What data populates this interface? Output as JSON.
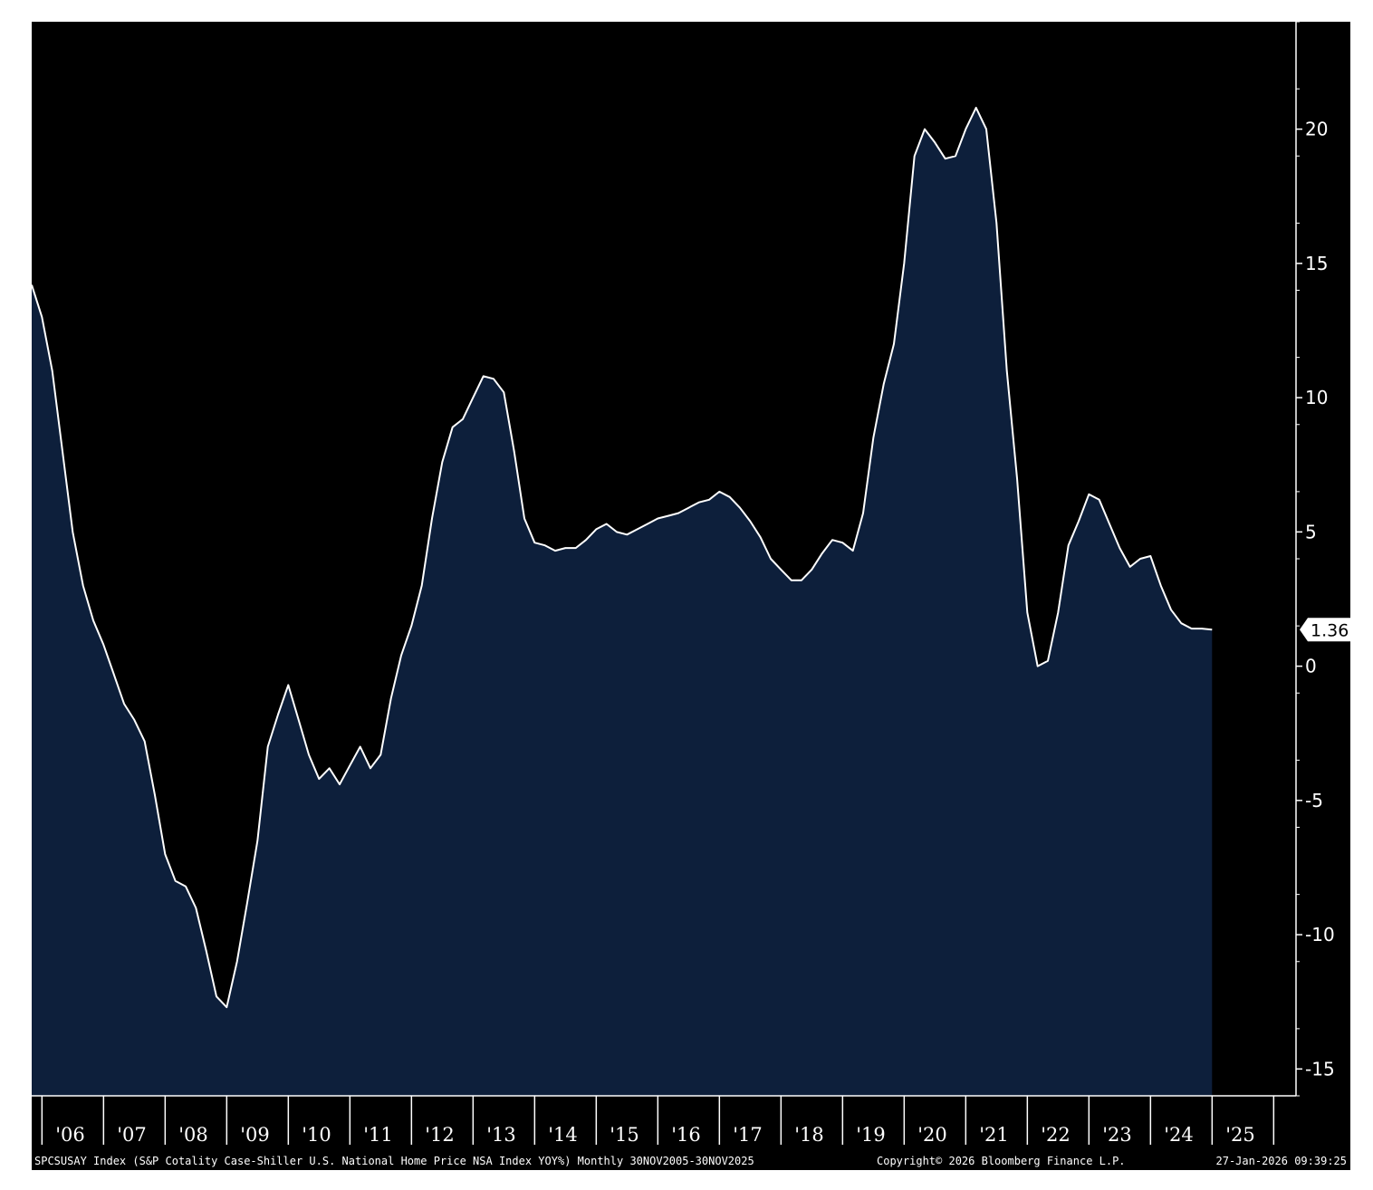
{
  "colors": {
    "background": "#000000",
    "area_fill": "#0d1f3b",
    "line": "#ffffff",
    "frame": "#ffffff",
    "page": "#ffffff"
  },
  "footer": {
    "description": "SPCSUSAY Index (S&P Cotality Case-Shiller U.S. National Home Price NSA Index YOY%) Monthly 30NOV2005-30NOV2025",
    "copyright": "Copyright© 2026 Bloomberg Finance L.P.",
    "timestamp": "27-Jan-2026 09:39:25"
  },
  "chart_data": {
    "type": "area",
    "title": "",
    "xlabel": "",
    "ylabel": "",
    "x_range": [
      "2005-11",
      "2025-11"
    ],
    "ylim": [
      -16,
      24
    ],
    "y_axis_side": "right",
    "y_ticks": [
      -15,
      -10,
      -5,
      0,
      5,
      10,
      15,
      20
    ],
    "y_tick_labels": [
      "-15",
      "-10",
      "-5",
      "0",
      "5",
      "10",
      "15",
      "20"
    ],
    "x_tick_labels": [
      "'06",
      "'07",
      "'08",
      "'09",
      "'10",
      "'11",
      "'12",
      "'13",
      "'14",
      "'15",
      "'16",
      "'17",
      "'18",
      "'19",
      "'20",
      "'21",
      "'22",
      "'23",
      "'24",
      "'25"
    ],
    "grid": false,
    "legend": "none",
    "last_value_label": "1.36",
    "series": [
      {
        "name": "SPCSUSAY Index",
        "points": [
          [
            "2005-11",
            14.2
          ],
          [
            "2006-01",
            13.0
          ],
          [
            "2006-03",
            11.0
          ],
          [
            "2006-05",
            8.0
          ],
          [
            "2006-07",
            5.0
          ],
          [
            "2006-09",
            3.0
          ],
          [
            "2006-11",
            1.7
          ],
          [
            "2007-01",
            0.8
          ],
          [
            "2007-03",
            -0.3
          ],
          [
            "2007-05",
            -1.4
          ],
          [
            "2007-07",
            -2.0
          ],
          [
            "2007-09",
            -2.8
          ],
          [
            "2007-11",
            -4.8
          ],
          [
            "2008-01",
            -7.0
          ],
          [
            "2008-03",
            -8.0
          ],
          [
            "2008-05",
            -8.2
          ],
          [
            "2008-07",
            -9.0
          ],
          [
            "2008-09",
            -10.6
          ],
          [
            "2008-11",
            -12.3
          ],
          [
            "2009-01",
            -12.7
          ],
          [
            "2009-03",
            -11.0
          ],
          [
            "2009-05",
            -8.8
          ],
          [
            "2009-07",
            -6.5
          ],
          [
            "2009-09",
            -3.0
          ],
          [
            "2009-11",
            -1.8
          ],
          [
            "2010-01",
            -0.7
          ],
          [
            "2010-03",
            -2.0
          ],
          [
            "2010-05",
            -3.3
          ],
          [
            "2010-07",
            -4.2
          ],
          [
            "2010-09",
            -3.8
          ],
          [
            "2010-11",
            -4.4
          ],
          [
            "2011-01",
            -3.7
          ],
          [
            "2011-03",
            -3.0
          ],
          [
            "2011-05",
            -3.8
          ],
          [
            "2011-07",
            -3.3
          ],
          [
            "2011-09",
            -1.2
          ],
          [
            "2011-11",
            0.4
          ],
          [
            "2012-01",
            1.5
          ],
          [
            "2012-03",
            3.0
          ],
          [
            "2012-05",
            5.5
          ],
          [
            "2012-07",
            7.6
          ],
          [
            "2012-09",
            8.9
          ],
          [
            "2012-11",
            9.2
          ],
          [
            "2013-01",
            10.0
          ],
          [
            "2013-03",
            10.8
          ],
          [
            "2013-05",
            10.7
          ],
          [
            "2013-07",
            10.2
          ],
          [
            "2013-09",
            8.0
          ],
          [
            "2013-11",
            5.5
          ],
          [
            "2014-01",
            4.6
          ],
          [
            "2014-03",
            4.5
          ],
          [
            "2014-05",
            4.3
          ],
          [
            "2014-07",
            4.4
          ],
          [
            "2014-09",
            4.4
          ],
          [
            "2014-11",
            4.7
          ],
          [
            "2015-01",
            5.1
          ],
          [
            "2015-03",
            5.3
          ],
          [
            "2015-05",
            5.0
          ],
          [
            "2015-07",
            4.9
          ],
          [
            "2015-09",
            5.1
          ],
          [
            "2015-11",
            5.3
          ],
          [
            "2016-01",
            5.5
          ],
          [
            "2016-03",
            5.6
          ],
          [
            "2016-05",
            5.7
          ],
          [
            "2016-07",
            5.9
          ],
          [
            "2016-09",
            6.1
          ],
          [
            "2016-11",
            6.2
          ],
          [
            "2017-01",
            6.5
          ],
          [
            "2017-03",
            6.3
          ],
          [
            "2017-05",
            5.9
          ],
          [
            "2017-07",
            5.4
          ],
          [
            "2017-09",
            4.8
          ],
          [
            "2017-11",
            4.0
          ],
          [
            "2018-01",
            3.6
          ],
          [
            "2018-03",
            3.2
          ],
          [
            "2018-05",
            3.2
          ],
          [
            "2018-07",
            3.6
          ],
          [
            "2018-09",
            4.2
          ],
          [
            "2018-11",
            4.7
          ],
          [
            "2019-01",
            4.6
          ],
          [
            "2019-03",
            4.3
          ],
          [
            "2019-05",
            5.7
          ],
          [
            "2019-07",
            8.5
          ],
          [
            "2019-09",
            10.5
          ],
          [
            "2019-11",
            12.0
          ],
          [
            "2020-01",
            15.0
          ],
          [
            "2020-03",
            19.0
          ],
          [
            "2020-05",
            20.0
          ],
          [
            "2020-07",
            19.5
          ],
          [
            "2020-09",
            18.9
          ],
          [
            "2020-11",
            19.0
          ],
          [
            "2021-01",
            20.0
          ],
          [
            "2021-03",
            20.8
          ],
          [
            "2021-05",
            20.0
          ],
          [
            "2021-07",
            16.5
          ],
          [
            "2021-09",
            11.0
          ],
          [
            "2021-11",
            7.0
          ],
          [
            "2022-01",
            2.0
          ],
          [
            "2022-03",
            0.0
          ],
          [
            "2022-05",
            0.2
          ],
          [
            "2022-07",
            2.0
          ],
          [
            "2022-09",
            4.5
          ],
          [
            "2022-11",
            5.4
          ],
          [
            "2023-01",
            6.4
          ],
          [
            "2023-03",
            6.2
          ],
          [
            "2023-05",
            5.3
          ],
          [
            "2023-07",
            4.4
          ],
          [
            "2023-09",
            3.7
          ],
          [
            "2023-11",
            4.0
          ],
          [
            "2024-01",
            4.1
          ],
          [
            "2024-03",
            3.0
          ],
          [
            "2024-05",
            2.1
          ],
          [
            "2024-07",
            1.6
          ],
          [
            "2024-09",
            1.4
          ],
          [
            "2024-11",
            1.4
          ],
          [
            "2025-01",
            1.36
          ]
        ]
      }
    ]
  }
}
